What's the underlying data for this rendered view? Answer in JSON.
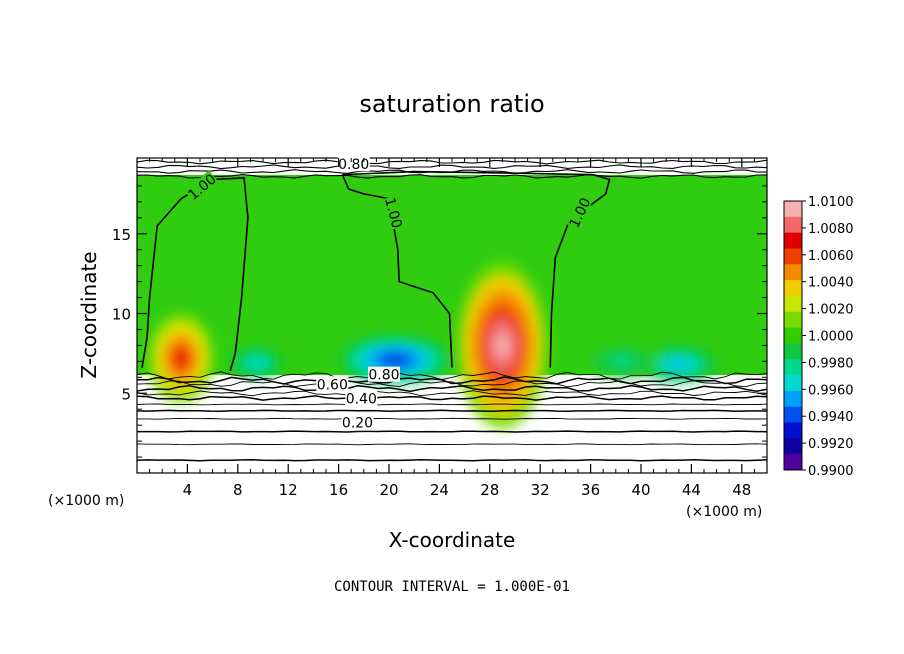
{
  "chart_data": {
    "type": "heatmap",
    "title": "saturation ratio",
    "xlabel": "X-coordinate",
    "ylabel": "Z-coordinate",
    "x_unit": "(×1000 m)",
    "y_unit": "(×1000 m)",
    "xlim": [
      0,
      50
    ],
    "ylim": [
      0,
      19.75
    ],
    "x_ticks": [
      "4",
      "8",
      "12",
      "16",
      "20",
      "24",
      "28",
      "32",
      "36",
      "40",
      "44",
      "48"
    ],
    "y_ticks": [
      "5",
      "10",
      "15"
    ],
    "colorbar": {
      "range": [
        0.99,
        1.01
      ],
      "labels": [
        "1.0100",
        "1.0080",
        "1.0060",
        "1.0040",
        "1.0020",
        "1.0000",
        "0.9980",
        "0.9960",
        "0.9940",
        "0.9920",
        "0.9900"
      ],
      "colors": [
        "#f7b0b0",
        "#f06868",
        "#e00000",
        "#f04000",
        "#f58c00",
        "#f0cc00",
        "#c8e600",
        "#78dc00",
        "#30d000",
        "#10c840",
        "#00d890",
        "#00d8d0",
        "#00a0ff",
        "#0050f0",
        "#0010d0",
        "#1000a0",
        "#5000a0"
      ]
    },
    "contour_labels": [
      "0.80",
      "1.00",
      "1.00",
      "1.00",
      "0.60",
      "0.80",
      "0.40",
      "0.20"
    ],
    "contour_lines": {
      "lower_levels_z": [
        0.8,
        1.8,
        2.6,
        3.4,
        3.9,
        4.3,
        4.7,
        5.0,
        5.3,
        5.6,
        5.8,
        6.1
      ],
      "top_levels_z": [
        18.6,
        18.9,
        19.2,
        19.5
      ]
    },
    "one_contours": [
      [
        [
          0.4,
          6.6
        ],
        [
          0.8,
          8.5
        ],
        [
          1.0,
          11.0
        ],
        [
          1.6,
          15.5
        ],
        [
          3.5,
          17.2
        ],
        [
          6.0,
          18.4
        ],
        [
          8.5,
          18.5
        ],
        [
          8.8,
          16.0
        ],
        [
          8.3,
          11.0
        ],
        [
          7.8,
          7.5
        ],
        [
          7.4,
          6.4
        ]
      ],
      [
        [
          16.3,
          18.7
        ],
        [
          16.8,
          17.8
        ],
        [
          18.0,
          17.5
        ],
        [
          20.0,
          17.2
        ],
        [
          20.7,
          14.0
        ],
        [
          20.8,
          12.0
        ],
        [
          23.5,
          11.3
        ],
        [
          24.8,
          10.0
        ],
        [
          25.0,
          6.6
        ]
      ],
      [
        [
          32.8,
          6.6
        ],
        [
          32.9,
          10.0
        ],
        [
          33.2,
          13.5
        ],
        [
          34.3,
          15.8
        ],
        [
          37.2,
          17.5
        ],
        [
          37.5,
          18.4
        ],
        [
          36.2,
          18.7
        ],
        [
          30.0,
          18.8
        ],
        [
          22.0,
          18.9
        ],
        [
          16.3,
          18.7
        ]
      ]
    ],
    "blobs": [
      {
        "x": 3.5,
        "z": 7.2,
        "rx": 2.6,
        "rz": 2.8,
        "value": 1.007
      },
      {
        "x": 29.0,
        "z": 8.0,
        "rx": 3.6,
        "rz": 5.2,
        "value": 1.01
      },
      {
        "x": 20.5,
        "z": 7.1,
        "rx": 4.4,
        "rz": 1.5,
        "value": 0.992
      },
      {
        "x": 43.0,
        "z": 6.8,
        "rx": 3.0,
        "rz": 1.1,
        "value": 0.995
      },
      {
        "x": 9.5,
        "z": 6.9,
        "rx": 2.0,
        "rz": 0.9,
        "value": 0.996
      },
      {
        "x": 38.5,
        "z": 7.0,
        "rx": 2.8,
        "rz": 1.0,
        "value": 0.9975
      }
    ],
    "grid": false,
    "legend": "right"
  },
  "footer": "CONTOUR INTERVAL = 1.000E-01"
}
